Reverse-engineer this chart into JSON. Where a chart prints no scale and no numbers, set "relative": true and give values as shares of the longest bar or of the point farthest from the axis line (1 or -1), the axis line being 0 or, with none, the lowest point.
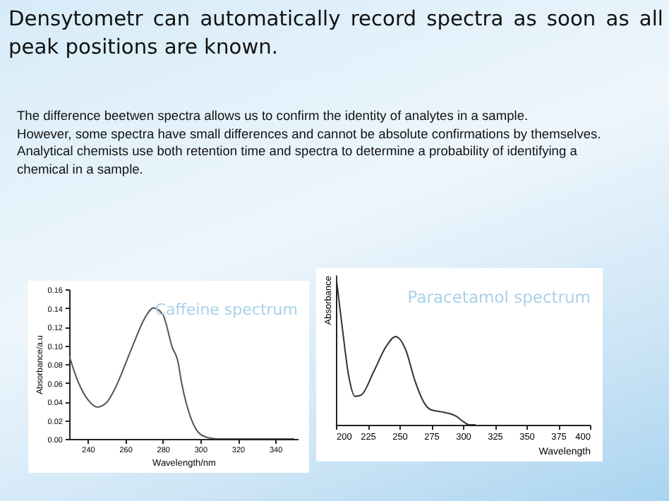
{
  "chart_data": [
    {
      "type": "other",
      "title": "Densytometr can automatically record spectra as  soon as all peak positions are known.",
      "annotations": [
        "The difference beetwen spectra allows us to confirm the identity of analytes in a sample.",
        "However, some spectra have small differences and cannot be absolute confirmations by themselves.",
        "Analytical chemists use both retention time and spectra to determine a probability of identifying a chemical in a sample."
      ]
    },
    {
      "type": "line",
      "title": "Caffeine spectrum",
      "xlabel": "Wavelength/nm",
      "ylabel": "Absorbance/a.u",
      "xlim": [
        230,
        352
      ],
      "xticks": [
        240,
        260,
        280,
        300,
        320,
        340
      ],
      "ylim": [
        0,
        0.16
      ],
      "yticks": [
        {
          "value": 0,
          "label": "0.00"
        },
        {
          "value": 0.02,
          "label": "0.02"
        },
        {
          "value": 0.04,
          "label": "0.04"
        },
        {
          "value": 0.06,
          "label": "0.06"
        },
        {
          "value": 0.08,
          "label": "0.08"
        },
        {
          "value": 0.1,
          "label": "0.10"
        },
        {
          "value": 0.12,
          "label": "0.12"
        },
        {
          "value": 0.14,
          "label": "0.14"
        },
        {
          "value": 0.16,
          "label": "0.16"
        }
      ],
      "series": [
        {
          "color": "#555555",
          "x": [
            230,
            235,
            240,
            245,
            250,
            255,
            260,
            265,
            270,
            275,
            280,
            285,
            288,
            290,
            295,
            300,
            305,
            310,
            350
          ],
          "values": [
            0.089,
            0.06,
            0.042,
            0.034,
            0.039,
            0.056,
            0.08,
            0.105,
            0.128,
            0.14,
            0.133,
            0.098,
            0.083,
            0.06,
            0.022,
            0.005,
            0.001,
            0,
            0
          ]
        }
      ]
    },
    {
      "type": "line",
      "title": "Paracetamol spectrum",
      "xlabel": "Wavelength",
      "ylabel": "Absorbance",
      "relative": true,
      "xlim": [
        200,
        400
      ],
      "xticks": [
        200,
        225,
        250,
        275,
        300,
        325,
        350,
        375,
        400
      ],
      "series": [
        {
          "color": "#333333",
          "x": [
            200,
            205,
            210,
            215,
            220,
            230,
            240,
            247,
            255,
            262,
            270,
            275,
            285,
            295,
            300,
            305,
            310
          ],
          "values": [
            1,
            0.65,
            0.33,
            0.19,
            0.2,
            0.36,
            0.53,
            0.59,
            0.5,
            0.3,
            0.14,
            0.1,
            0.084,
            0.056,
            0.023,
            0,
            0
          ]
        }
      ]
    }
  ]
}
